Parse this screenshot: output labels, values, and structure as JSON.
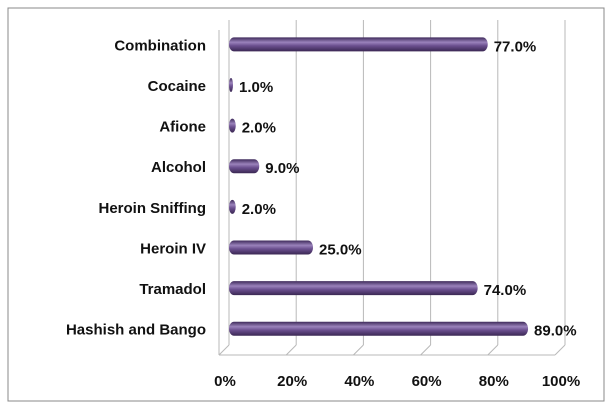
{
  "chart_data": {
    "type": "bar",
    "orientation": "horizontal",
    "categories": [
      "Combination",
      "Cocaine",
      "Afione",
      "Alcohol",
      "Heroin Sniffing",
      "Heroin IV",
      "Tramadol",
      "Hashish and Bango"
    ],
    "values": [
      77,
      1,
      2,
      9,
      2,
      25,
      74,
      89
    ],
    "value_labels": [
      "77.0%",
      "1.0%",
      "2.0%",
      "9.0%",
      "2.0%",
      "25.0%",
      "74.0%",
      "89.0%"
    ],
    "color": "#6b4f8f",
    "xlim": [
      0,
      100
    ],
    "xticks": [
      {
        "value": 0,
        "label": "0%"
      },
      {
        "value": 20,
        "label": "20%"
      },
      {
        "value": 40,
        "label": "40%"
      },
      {
        "value": 60,
        "label": "60%"
      },
      {
        "value": 80,
        "label": "80%"
      },
      {
        "value": 100,
        "label": "100%"
      }
    ],
    "grid": true
  }
}
